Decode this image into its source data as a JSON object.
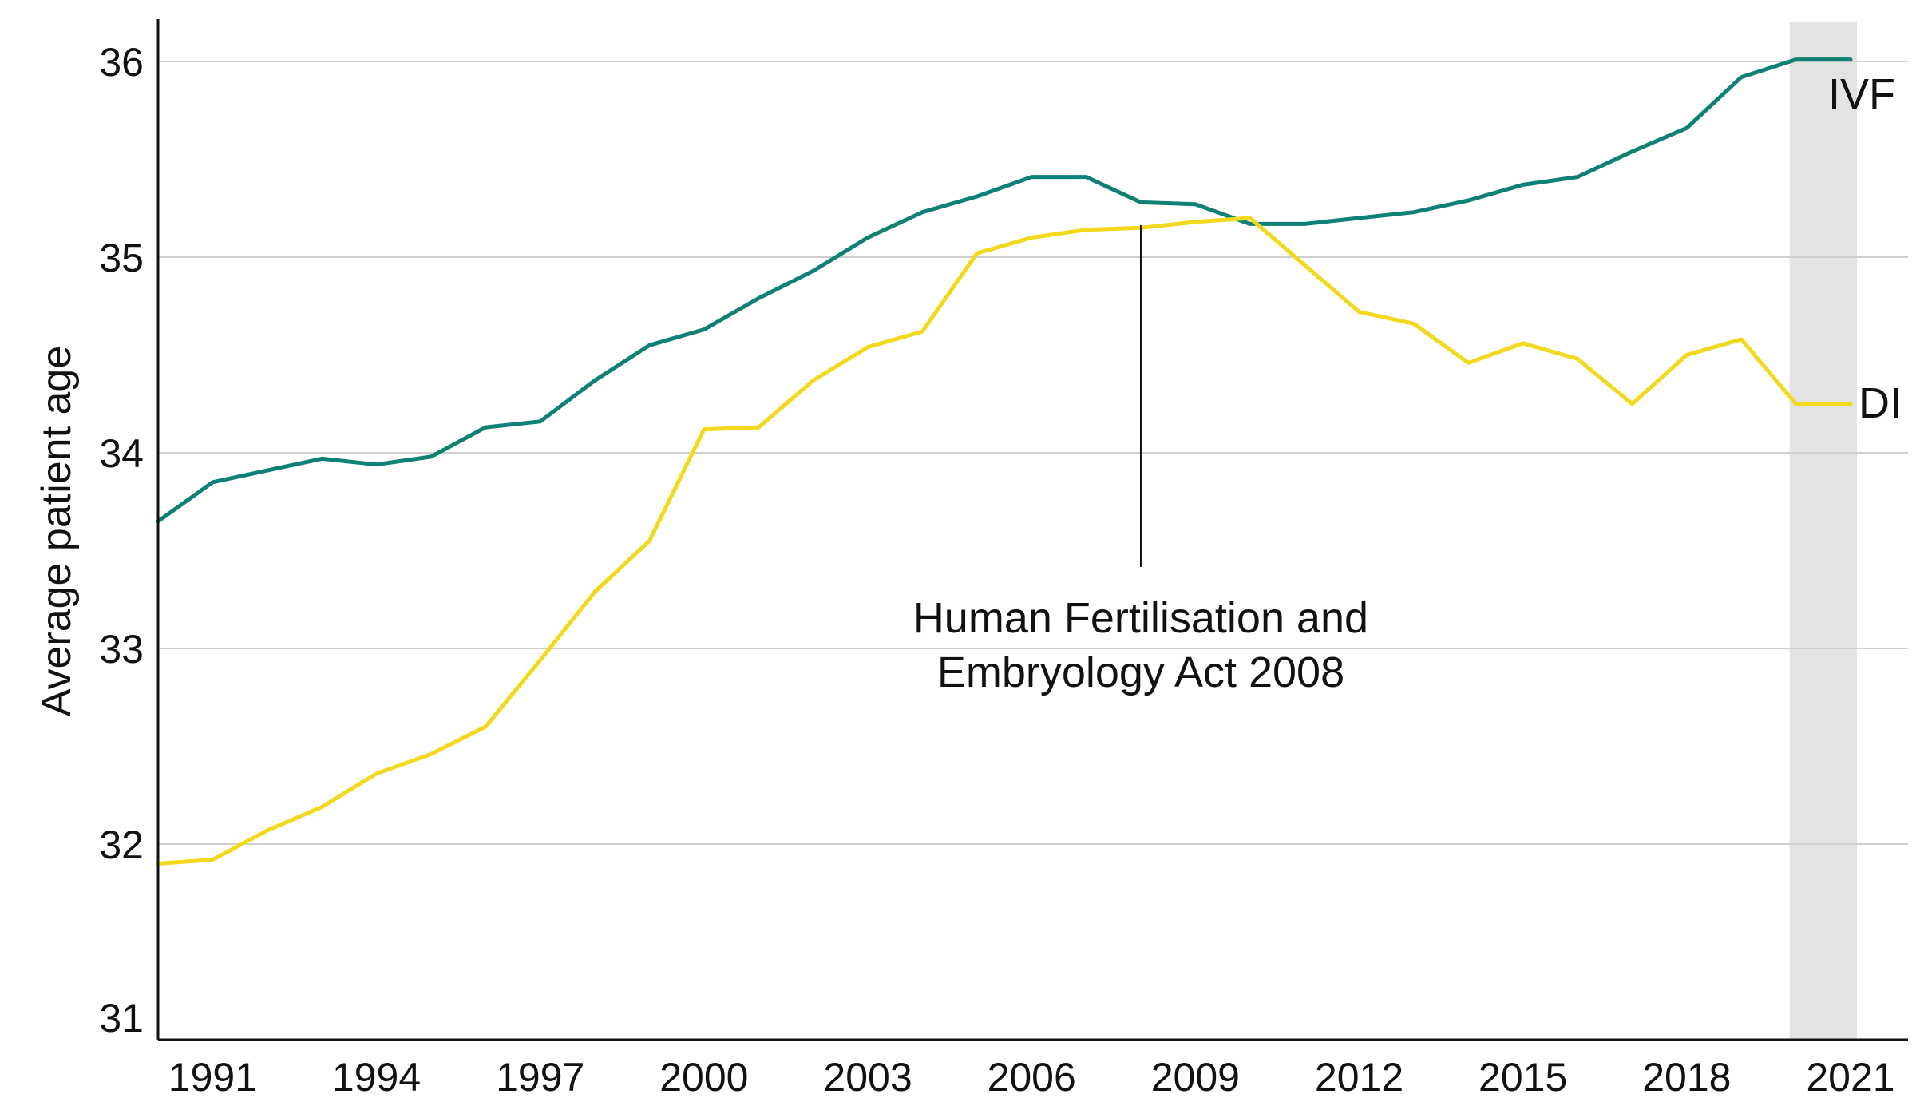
{
  "chart_data": {
    "type": "line",
    "title": "",
    "xlabel": "",
    "ylabel": "Average patient age",
    "x": [
      1990,
      1991,
      1992,
      1993,
      1994,
      1995,
      1996,
      1997,
      1998,
      1999,
      2000,
      2001,
      2002,
      2003,
      2004,
      2005,
      2006,
      2007,
      2008,
      2009,
      2010,
      2011,
      2012,
      2013,
      2014,
      2015,
      2016,
      2017,
      2018,
      2019,
      2020,
      2021
    ],
    "xlim": [
      1990,
      2021
    ],
    "ylim": [
      31,
      36.2
    ],
    "xticks": [
      1991,
      1994,
      1997,
      2000,
      2003,
      2006,
      2009,
      2012,
      2015,
      2018,
      2021
    ],
    "yticks": [
      31,
      32,
      33,
      34,
      35,
      36
    ],
    "grid": "horizontal",
    "series": [
      {
        "name": "IVF",
        "color": "#0f8075",
        "values": [
          33.65,
          33.85,
          33.91,
          33.97,
          33.94,
          33.98,
          34.13,
          34.16,
          34.37,
          34.55,
          34.63,
          34.79,
          34.93,
          35.1,
          35.23,
          35.31,
          35.41,
          35.41,
          35.28,
          35.27,
          35.17,
          35.17,
          35.2,
          35.23,
          35.29,
          35.37,
          35.41,
          35.54,
          35.66,
          35.92,
          36.01,
          36.01
        ]
      },
      {
        "name": "DI",
        "color": "#f2d91b",
        "values": [
          31.9,
          31.92,
          32.07,
          32.19,
          32.36,
          32.46,
          32.6,
          32.94,
          33.29,
          33.55,
          34.12,
          34.13,
          34.37,
          34.54,
          34.62,
          35.02,
          35.1,
          35.14,
          35.15,
          35.18,
          35.2,
          34.96,
          34.72,
          34.66,
          34.46,
          34.56,
          34.48,
          34.25,
          34.5,
          34.58,
          34.25,
          34.25
        ]
      }
    ],
    "annotations": [
      {
        "text_lines": [
          "Human Fertilisation and",
          "Embryology Act 2008"
        ],
        "x": 2008
      }
    ],
    "shaded_region": {
      "from": 2020,
      "to": 2021,
      "color": "#e3e3e3"
    }
  }
}
